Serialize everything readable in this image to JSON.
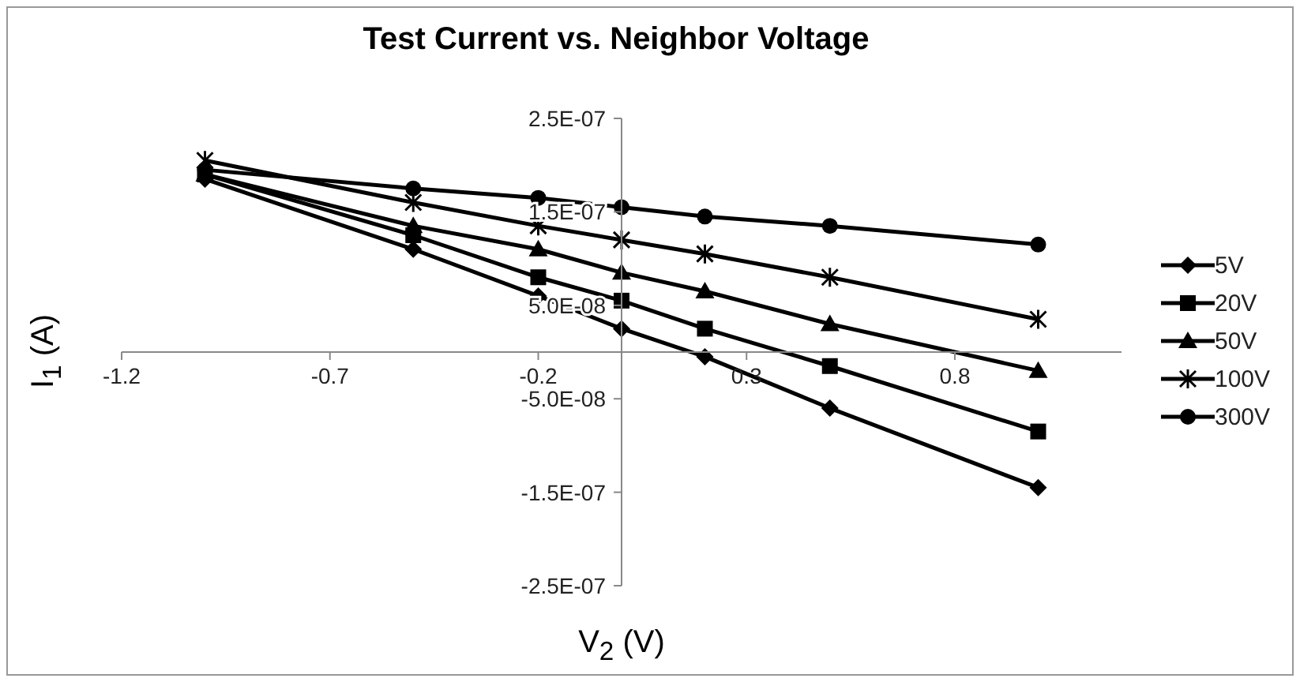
{
  "chart_data": {
    "type": "line",
    "title": "Test Current vs. Neighbor Voltage",
    "xlabel": "V$_{2}$ (V)",
    "ylabel": "I$_{1}$ (A)",
    "x": [
      -1,
      -0.5,
      -0.2,
      0,
      0.2,
      0.5,
      1
    ],
    "series": [
      {
        "name": "5V",
        "color": "#000000",
        "marker": "diamond",
        "values": [
          1.85e-07,
          1.1e-07,
          6e-08,
          2.5e-08,
          -5e-09,
          -6e-08,
          -1.45e-07
        ]
      },
      {
        "name": "20V",
        "color": "#000000",
        "marker": "square",
        "values": [
          1.9e-07,
          1.25e-07,
          8e-08,
          5.5e-08,
          2.5e-08,
          -1.5e-08,
          -8.5e-08
        ]
      },
      {
        "name": "50V",
        "color": "#000000",
        "marker": "triangle",
        "values": [
          1.9e-07,
          1.35e-07,
          1.1e-07,
          8.5e-08,
          6.5e-08,
          3e-08,
          -2e-08
        ]
      },
      {
        "name": "100V",
        "color": "#000000",
        "marker": "cross",
        "values": [
          2.05e-07,
          1.6e-07,
          1.35e-07,
          1.2e-07,
          1.05e-07,
          8e-08,
          3.5e-08
        ]
      },
      {
        "name": "300V",
        "color": "#000000",
        "marker": "circle",
        "values": [
          1.95e-07,
          1.75e-07,
          1.65e-07,
          1.55e-07,
          1.45e-07,
          1.35e-07,
          1.15e-07
        ]
      }
    ],
    "xlim": [
      -1.2,
      1.2
    ],
    "xticks": [
      -1.2,
      -0.7,
      -0.2,
      0.3,
      0.8
    ],
    "ylim": [
      -2.5e-07,
      2.5e-07
    ],
    "yticks": [
      {
        "value": -2.5e-07,
        "label": "-2.5E-07"
      },
      {
        "value": -1.5e-07,
        "label": "-1.5E-07"
      },
      {
        "value": -5e-08,
        "label": "-5.0E-08"
      },
      {
        "value": 5e-08,
        "label": "5.0E-08"
      },
      {
        "value": 1.5e-07,
        "label": "1.5E-07"
      },
      {
        "value": 2.5e-07,
        "label": "2.5E-07"
      }
    ],
    "grid": false,
    "legend": "right"
  }
}
